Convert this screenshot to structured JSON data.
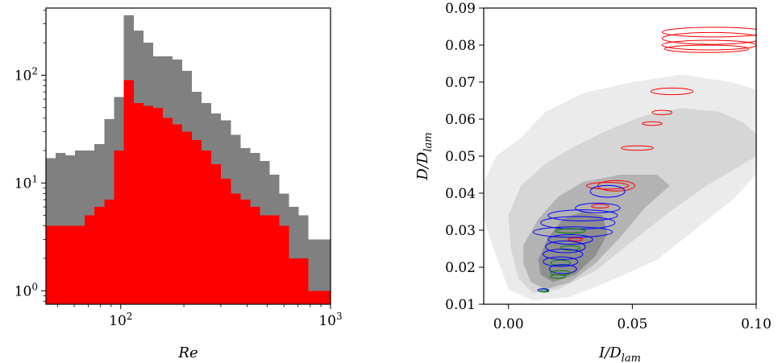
{
  "chart_data": [
    {
      "type": "bar",
      "subtype": "histogram",
      "xlabel": "Re",
      "ylabel": "",
      "xscale": "log",
      "yscale": "log",
      "xlim": [
        44,
        1000
      ],
      "ylim": [
        0.75,
        420
      ],
      "xticks": [
        {
          "value": 100,
          "base": "10",
          "exp": "2"
        },
        {
          "value": 1000,
          "base": "10",
          "exp": "3"
        }
      ],
      "yticks": [
        {
          "value": 1,
          "base": "10",
          "exp": "0"
        },
        {
          "value": 10,
          "base": "10",
          "exp": "1"
        },
        {
          "value": 100,
          "base": "10",
          "exp": "2"
        }
      ],
      "bin_edges": [
        44,
        48.95,
        54.46,
        60.58,
        67.4,
        74.98,
        83.41,
        92.79,
        103.2,
        114.8,
        127.7,
        142.1,
        158.1,
        175.9,
        195.7,
        217.7,
        242.2,
        269.4,
        299.7,
        333.4,
        370.9,
        412.6,
        459.0,
        510.7,
        568.1,
        632.0,
        703.1,
        782.2,
        870.2,
        1000
      ],
      "series": [
        {
          "color": "#808080",
          "values": [
            17,
            19,
            18,
            20,
            20,
            23,
            39,
            63,
            360,
            260,
            200,
            150,
            150,
            140,
            110,
            70,
            55,
            44,
            38,
            28,
            21,
            19,
            16,
            12,
            8,
            6,
            5,
            3,
            3
          ]
        },
        {
          "color": "#ff0000",
          "values": [
            4,
            4,
            4,
            4,
            5,
            6,
            7,
            20,
            90,
            55,
            52,
            50,
            40,
            35,
            30,
            25,
            20,
            15,
            11,
            8,
            7,
            6,
            5,
            5,
            4,
            2,
            2,
            1,
            1
          ]
        }
      ]
    },
    {
      "type": "scatter",
      "subtype": "density-with-contours",
      "xlabel": "I/D",
      "xlabel_sub": "lam",
      "ylabel": "D/D",
      "ylabel_sub": "lam",
      "xlim": [
        -0.01,
        0.1
      ],
      "ylim": [
        0.01,
        0.09
      ],
      "xticks": [
        0,
        0.05,
        0.1
      ],
      "xtick_labels": [
        "0.00",
        "0.05",
        "0.10"
      ],
      "yticks": [
        0.01,
        0.02,
        0.03,
        0.04,
        0.05,
        0.06,
        0.07,
        0.08,
        0.09
      ],
      "ytick_labels": [
        "0.01",
        "0.02",
        "0.03",
        "0.04",
        "0.05",
        "0.06",
        "0.07",
        "0.08",
        "0.09"
      ],
      "background_density": {
        "colors": [
          "#ebebeb",
          "#d6d6d6",
          "#b3b3b3",
          "#8f8f8f"
        ],
        "levels": [
          [
            [
              -0.01,
              0.043
            ],
            [
              -0.005,
              0.05
            ],
            [
              0.005,
              0.055
            ],
            [
              0.015,
              0.062
            ],
            [
              0.03,
              0.067
            ],
            [
              0.05,
              0.07
            ],
            [
              0.07,
              0.072
            ],
            [
              0.09,
              0.07
            ],
            [
              0.1,
              0.068
            ],
            [
              0.1,
              0.045
            ],
            [
              0.09,
              0.038
            ],
            [
              0.075,
              0.03
            ],
            [
              0.06,
              0.022
            ],
            [
              0.04,
              0.016
            ],
            [
              0.025,
              0.012
            ],
            [
              0.01,
              0.011
            ],
            [
              0.0,
              0.014
            ],
            [
              -0.006,
              0.025
            ],
            [
              -0.01,
              0.033
            ]
          ],
          [
            [
              0.0,
              0.034
            ],
            [
              0.005,
              0.042
            ],
            [
              0.015,
              0.048
            ],
            [
              0.025,
              0.052
            ],
            [
              0.04,
              0.057
            ],
            [
              0.055,
              0.061
            ],
            [
              0.07,
              0.063
            ],
            [
              0.085,
              0.062
            ],
            [
              0.095,
              0.059
            ],
            [
              0.1,
              0.056
            ],
            [
              0.1,
              0.05
            ],
            [
              0.09,
              0.046
            ],
            [
              0.08,
              0.042
            ],
            [
              0.065,
              0.035
            ],
            [
              0.05,
              0.027
            ],
            [
              0.035,
              0.019
            ],
            [
              0.02,
              0.014
            ],
            [
              0.01,
              0.013
            ],
            [
              0.004,
              0.017
            ],
            [
              0.001,
              0.025
            ]
          ],
          [
            [
              0.006,
              0.026
            ],
            [
              0.012,
              0.033
            ],
            [
              0.02,
              0.039
            ],
            [
              0.03,
              0.043
            ],
            [
              0.045,
              0.045
            ],
            [
              0.06,
              0.045
            ],
            [
              0.065,
              0.042
            ],
            [
              0.055,
              0.036
            ],
            [
              0.045,
              0.028
            ],
            [
              0.035,
              0.021
            ],
            [
              0.025,
              0.016
            ],
            [
              0.015,
              0.014
            ],
            [
              0.009,
              0.016
            ],
            [
              0.006,
              0.021
            ]
          ],
          [
            [
              0.012,
              0.022
            ],
            [
              0.016,
              0.028
            ],
            [
              0.022,
              0.033
            ],
            [
              0.03,
              0.035
            ],
            [
              0.038,
              0.034
            ],
            [
              0.04,
              0.029
            ],
            [
              0.035,
              0.023
            ],
            [
              0.027,
              0.018
            ],
            [
              0.018,
              0.016
            ],
            [
              0.013,
              0.018
            ]
          ]
        ]
      },
      "contours": [
        {
          "color": "#ff0000",
          "cx": 0.083,
          "cy": 0.0835,
          "rx": 0.021,
          "ry": 0.0013
        },
        {
          "color": "#ff0000",
          "cx": 0.082,
          "cy": 0.0818,
          "rx": 0.02,
          "ry": 0.0016
        },
        {
          "color": "#ff0000",
          "cx": 0.081,
          "cy": 0.08,
          "rx": 0.019,
          "ry": 0.0013
        },
        {
          "color": "#ff0000",
          "cx": 0.08,
          "cy": 0.079,
          "rx": 0.017,
          "ry": 0.001
        },
        {
          "color": "#ff0000",
          "cx": 0.066,
          "cy": 0.0675,
          "rx": 0.0085,
          "ry": 0.0009
        },
        {
          "color": "#ff0000",
          "cx": 0.062,
          "cy": 0.0618,
          "rx": 0.004,
          "ry": 0.0006
        },
        {
          "color": "#ff0000",
          "cx": 0.058,
          "cy": 0.0588,
          "rx": 0.004,
          "ry": 0.0005
        },
        {
          "color": "#ff0000",
          "cx": 0.052,
          "cy": 0.0522,
          "rx": 0.0065,
          "ry": 0.0006
        },
        {
          "color": "#ff0000",
          "cx": 0.0435,
          "cy": 0.042,
          "rx": 0.0075,
          "ry": 0.0014
        },
        {
          "color": "#ff0000",
          "cx": 0.04,
          "cy": 0.042,
          "rx": 0.0085,
          "ry": 0.0009
        },
        {
          "color": "#0000ff",
          "cx": 0.04,
          "cy": 0.0405,
          "rx": 0.007,
          "ry": 0.0016
        },
        {
          "color": "#0000ff",
          "cx": 0.036,
          "cy": 0.036,
          "rx": 0.009,
          "ry": 0.0013
        },
        {
          "color": "#ff0000",
          "cx": 0.037,
          "cy": 0.0365,
          "rx": 0.0035,
          "ry": 0.0005
        },
        {
          "color": "#0000ff",
          "cx": 0.03,
          "cy": 0.034,
          "rx": 0.014,
          "ry": 0.0015
        },
        {
          "color": "#0000ff",
          "cx": 0.028,
          "cy": 0.032,
          "rx": 0.015,
          "ry": 0.0017
        },
        {
          "color": "#0000ff",
          "cx": 0.026,
          "cy": 0.0295,
          "rx": 0.016,
          "ry": 0.0014
        },
        {
          "color": "#008000",
          "cx": 0.025,
          "cy": 0.0298,
          "rx": 0.006,
          "ry": 0.0006
        },
        {
          "color": "#0000ff",
          "cx": 0.025,
          "cy": 0.0275,
          "rx": 0.009,
          "ry": 0.0013
        },
        {
          "color": "#ff0000",
          "cx": 0.027,
          "cy": 0.0275,
          "rx": 0.003,
          "ry": 0.0004
        },
        {
          "color": "#0000ff",
          "cx": 0.023,
          "cy": 0.0255,
          "rx": 0.008,
          "ry": 0.0016
        },
        {
          "color": "#008000",
          "cx": 0.025,
          "cy": 0.0252,
          "rx": 0.004,
          "ry": 0.0006
        },
        {
          "color": "#0000ff",
          "cx": 0.022,
          "cy": 0.0235,
          "rx": 0.008,
          "ry": 0.0014
        },
        {
          "color": "#0000ff",
          "cx": 0.021,
          "cy": 0.0215,
          "rx": 0.007,
          "ry": 0.0013
        },
        {
          "color": "#008000",
          "cx": 0.021,
          "cy": 0.0212,
          "rx": 0.004,
          "ry": 0.0007
        },
        {
          "color": "#0000ff",
          "cx": 0.022,
          "cy": 0.0195,
          "rx": 0.0055,
          "ry": 0.0012
        },
        {
          "color": "#008000",
          "cx": 0.021,
          "cy": 0.0185,
          "rx": 0.004,
          "ry": 0.0006
        },
        {
          "color": "#008000",
          "cx": 0.02,
          "cy": 0.0175,
          "rx": 0.003,
          "ry": 0.0005
        },
        {
          "color": "#0000ff",
          "cx": 0.014,
          "cy": 0.0138,
          "rx": 0.0022,
          "ry": 0.0004
        },
        {
          "color": "#008000",
          "cx": 0.0145,
          "cy": 0.0136,
          "rx": 0.0018,
          "ry": 0.0003
        }
      ]
    }
  ]
}
